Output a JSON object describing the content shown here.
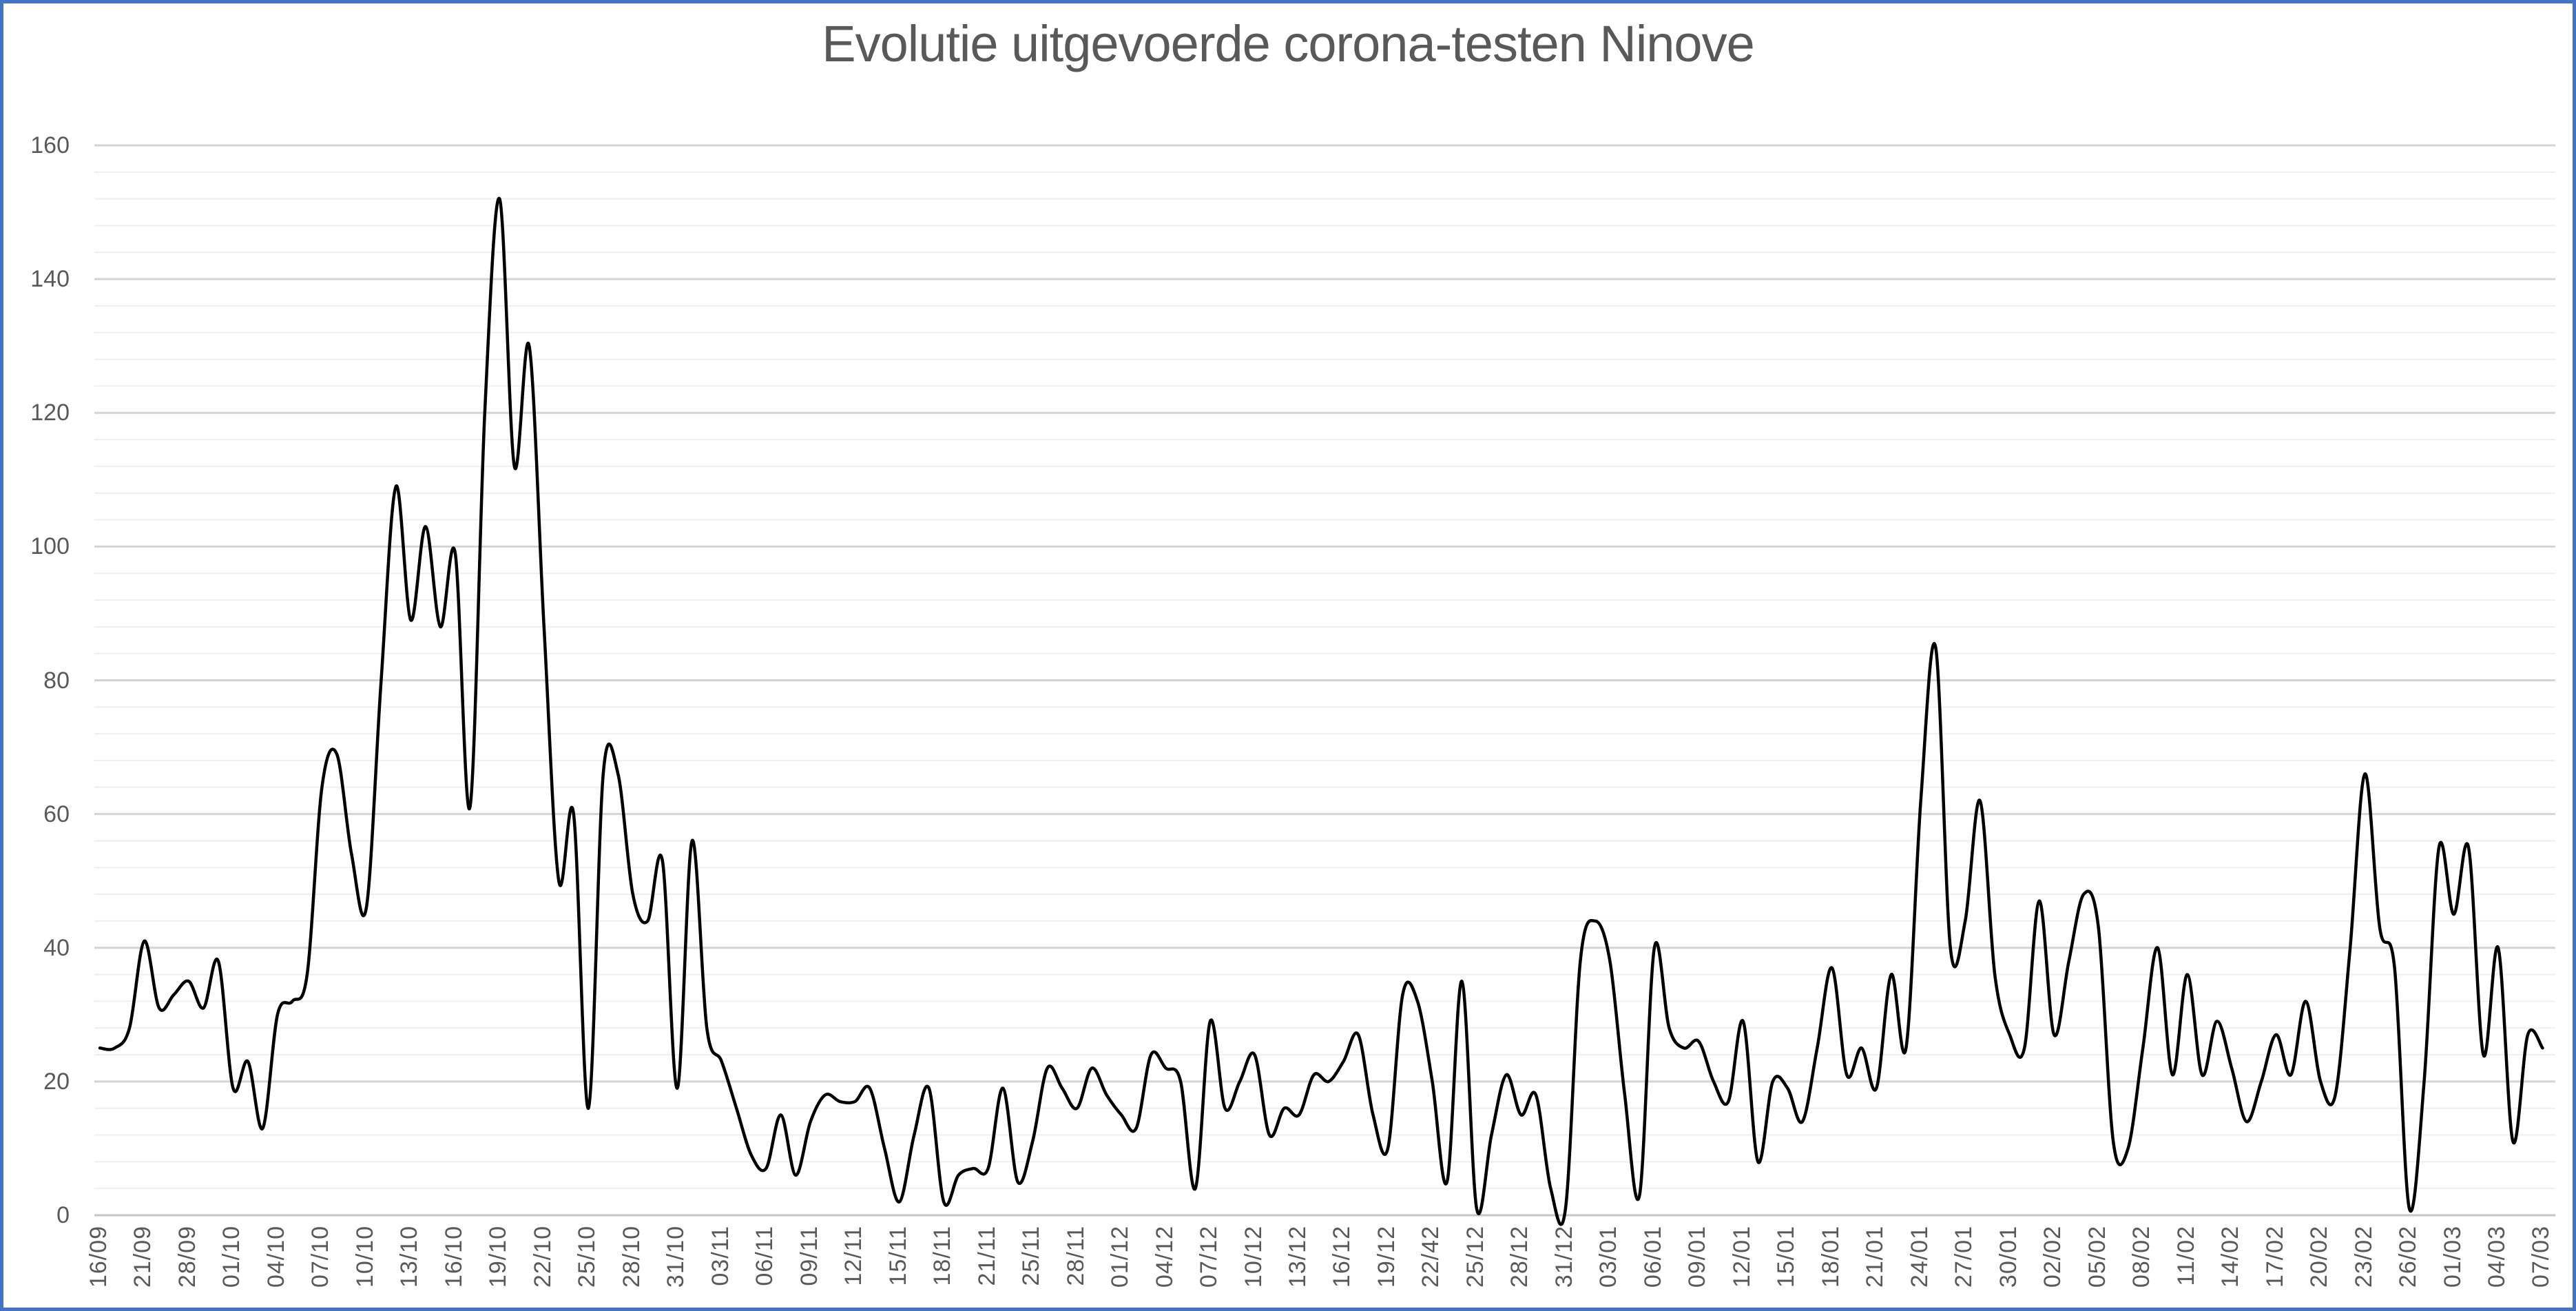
{
  "window": {
    "background": "#FFFFFF",
    "border_color": "#4472C4"
  },
  "chart": {
    "title": "Evolutie uitgevoerde corona-testen Ninove",
    "title_color": "#595959",
    "line_color": "#000000",
    "major_grid_color": "#D4D4D4",
    "minor_grid_color": "#EFEFEF",
    "zero_axis_color": "#C6C6C6",
    "tick_label_color": "#595959"
  },
  "chart_data": {
    "type": "line",
    "title": "Evolutie uitgevoerde corona-testen Ninove",
    "xlabel": "",
    "ylabel": "",
    "ylim": [
      0,
      160
    ],
    "y_ticks": [
      0,
      20,
      40,
      60,
      80,
      100,
      120,
      140,
      160
    ],
    "y_minor_unit": 4,
    "grid": "on",
    "legend": "none",
    "smoothed_line": true,
    "label_every_n_points": 3,
    "x_tick_labels": [
      "16/09",
      "21/09",
      "28/09",
      "01/10",
      "04/10",
      "07/10",
      "10/10",
      "13/10",
      "16/10",
      "19/10",
      "22/10",
      "25/10",
      "28/10",
      "31/10",
      "03/11",
      "06/11",
      "09/11",
      "12/11",
      "15/11",
      "18/11",
      "21/11",
      "25/11",
      "28/11",
      "01/12",
      "04/12",
      "07/12",
      "10/12",
      "13/12",
      "16/12",
      "19/12",
      "22/42",
      "25/12",
      "28/12",
      "31/12",
      "03/01",
      "06/01",
      "09/01",
      "12/01",
      "15/01",
      "18/01",
      "21/01",
      "24/01",
      "27/01",
      "30/01",
      "02/02",
      "05/02",
      "08/02",
      "11/02",
      "14/02",
      "17/02",
      "20/02",
      "23/02",
      "26/02",
      "01/03",
      "04/03",
      "07/03"
    ],
    "values": [
      25,
      25,
      28,
      41,
      31,
      33,
      35,
      31,
      38,
      19,
      23,
      13,
      30,
      32,
      36,
      64,
      69,
      54,
      46,
      80,
      109,
      89,
      103,
      88,
      99,
      61,
      120,
      152,
      112,
      130,
      88,
      50,
      60,
      16,
      66,
      66,
      48,
      44,
      53,
      19,
      56,
      28,
      23,
      16,
      9,
      7,
      15,
      6,
      14,
      18,
      17,
      17,
      19,
      10,
      2,
      12,
      19,
      2,
      6,
      7,
      7,
      19,
      5,
      11,
      22,
      19,
      16,
      22,
      18,
      15,
      13,
      24,
      22,
      20,
      4,
      29,
      16,
      20,
      24,
      12,
      16,
      15,
      21,
      20,
      23,
      27,
      15,
      10,
      33,
      32,
      20,
      5,
      35,
      1,
      12,
      21,
      15,
      18,
      4,
      1,
      38,
      44,
      38,
      18,
      3,
      40,
      28,
      25,
      26,
      20,
      17,
      29,
      8,
      20,
      19,
      14,
      25,
      37,
      21,
      25,
      19,
      36,
      25,
      62,
      85,
      40,
      44,
      62,
      36,
      27,
      25,
      47,
      27,
      38,
      48,
      43,
      11,
      10,
      25,
      40,
      21,
      36,
      21,
      29,
      22,
      14,
      20,
      27,
      21,
      32,
      20,
      18,
      40,
      66,
      43,
      37,
      1,
      20,
      55,
      45,
      55,
      24,
      40,
      11,
      27,
      25
    ]
  }
}
